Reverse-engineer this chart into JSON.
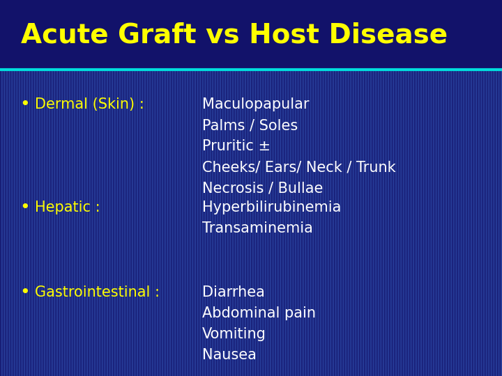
{
  "title": "Acute Graft vs Host Disease",
  "title_color": "#FFFF00",
  "title_fontsize": 28,
  "bg_color_top": "#12126a",
  "bg_color_bottom": "#2e4ba8",
  "separator_color": "#00DDDD",
  "bullet_color": "#FFFF00",
  "bullet_label_color": "#FFFF00",
  "content_color": "#FFFFFF",
  "bullet_fontsize": 15,
  "content_fontsize": 15,
  "title_bg_color": "#12126a",
  "bullets": [
    {
      "label": "Dermal (Skin) :",
      "items": [
        "Maculopapular",
        "Palms / Soles",
        "Pruritic ±",
        "Cheeks/ Ears/ Neck / Trunk",
        "Necrosis / Bullae"
      ]
    },
    {
      "label": "Hepatic :",
      "items": [
        "Hyperbilirubinemia",
        "Transaminemia"
      ]
    },
    {
      "label": "Gastrointestinal :",
      "items": [
        "Diarrhea",
        "Abdominal pain",
        "Vomiting",
        "Nausea"
      ]
    }
  ]
}
